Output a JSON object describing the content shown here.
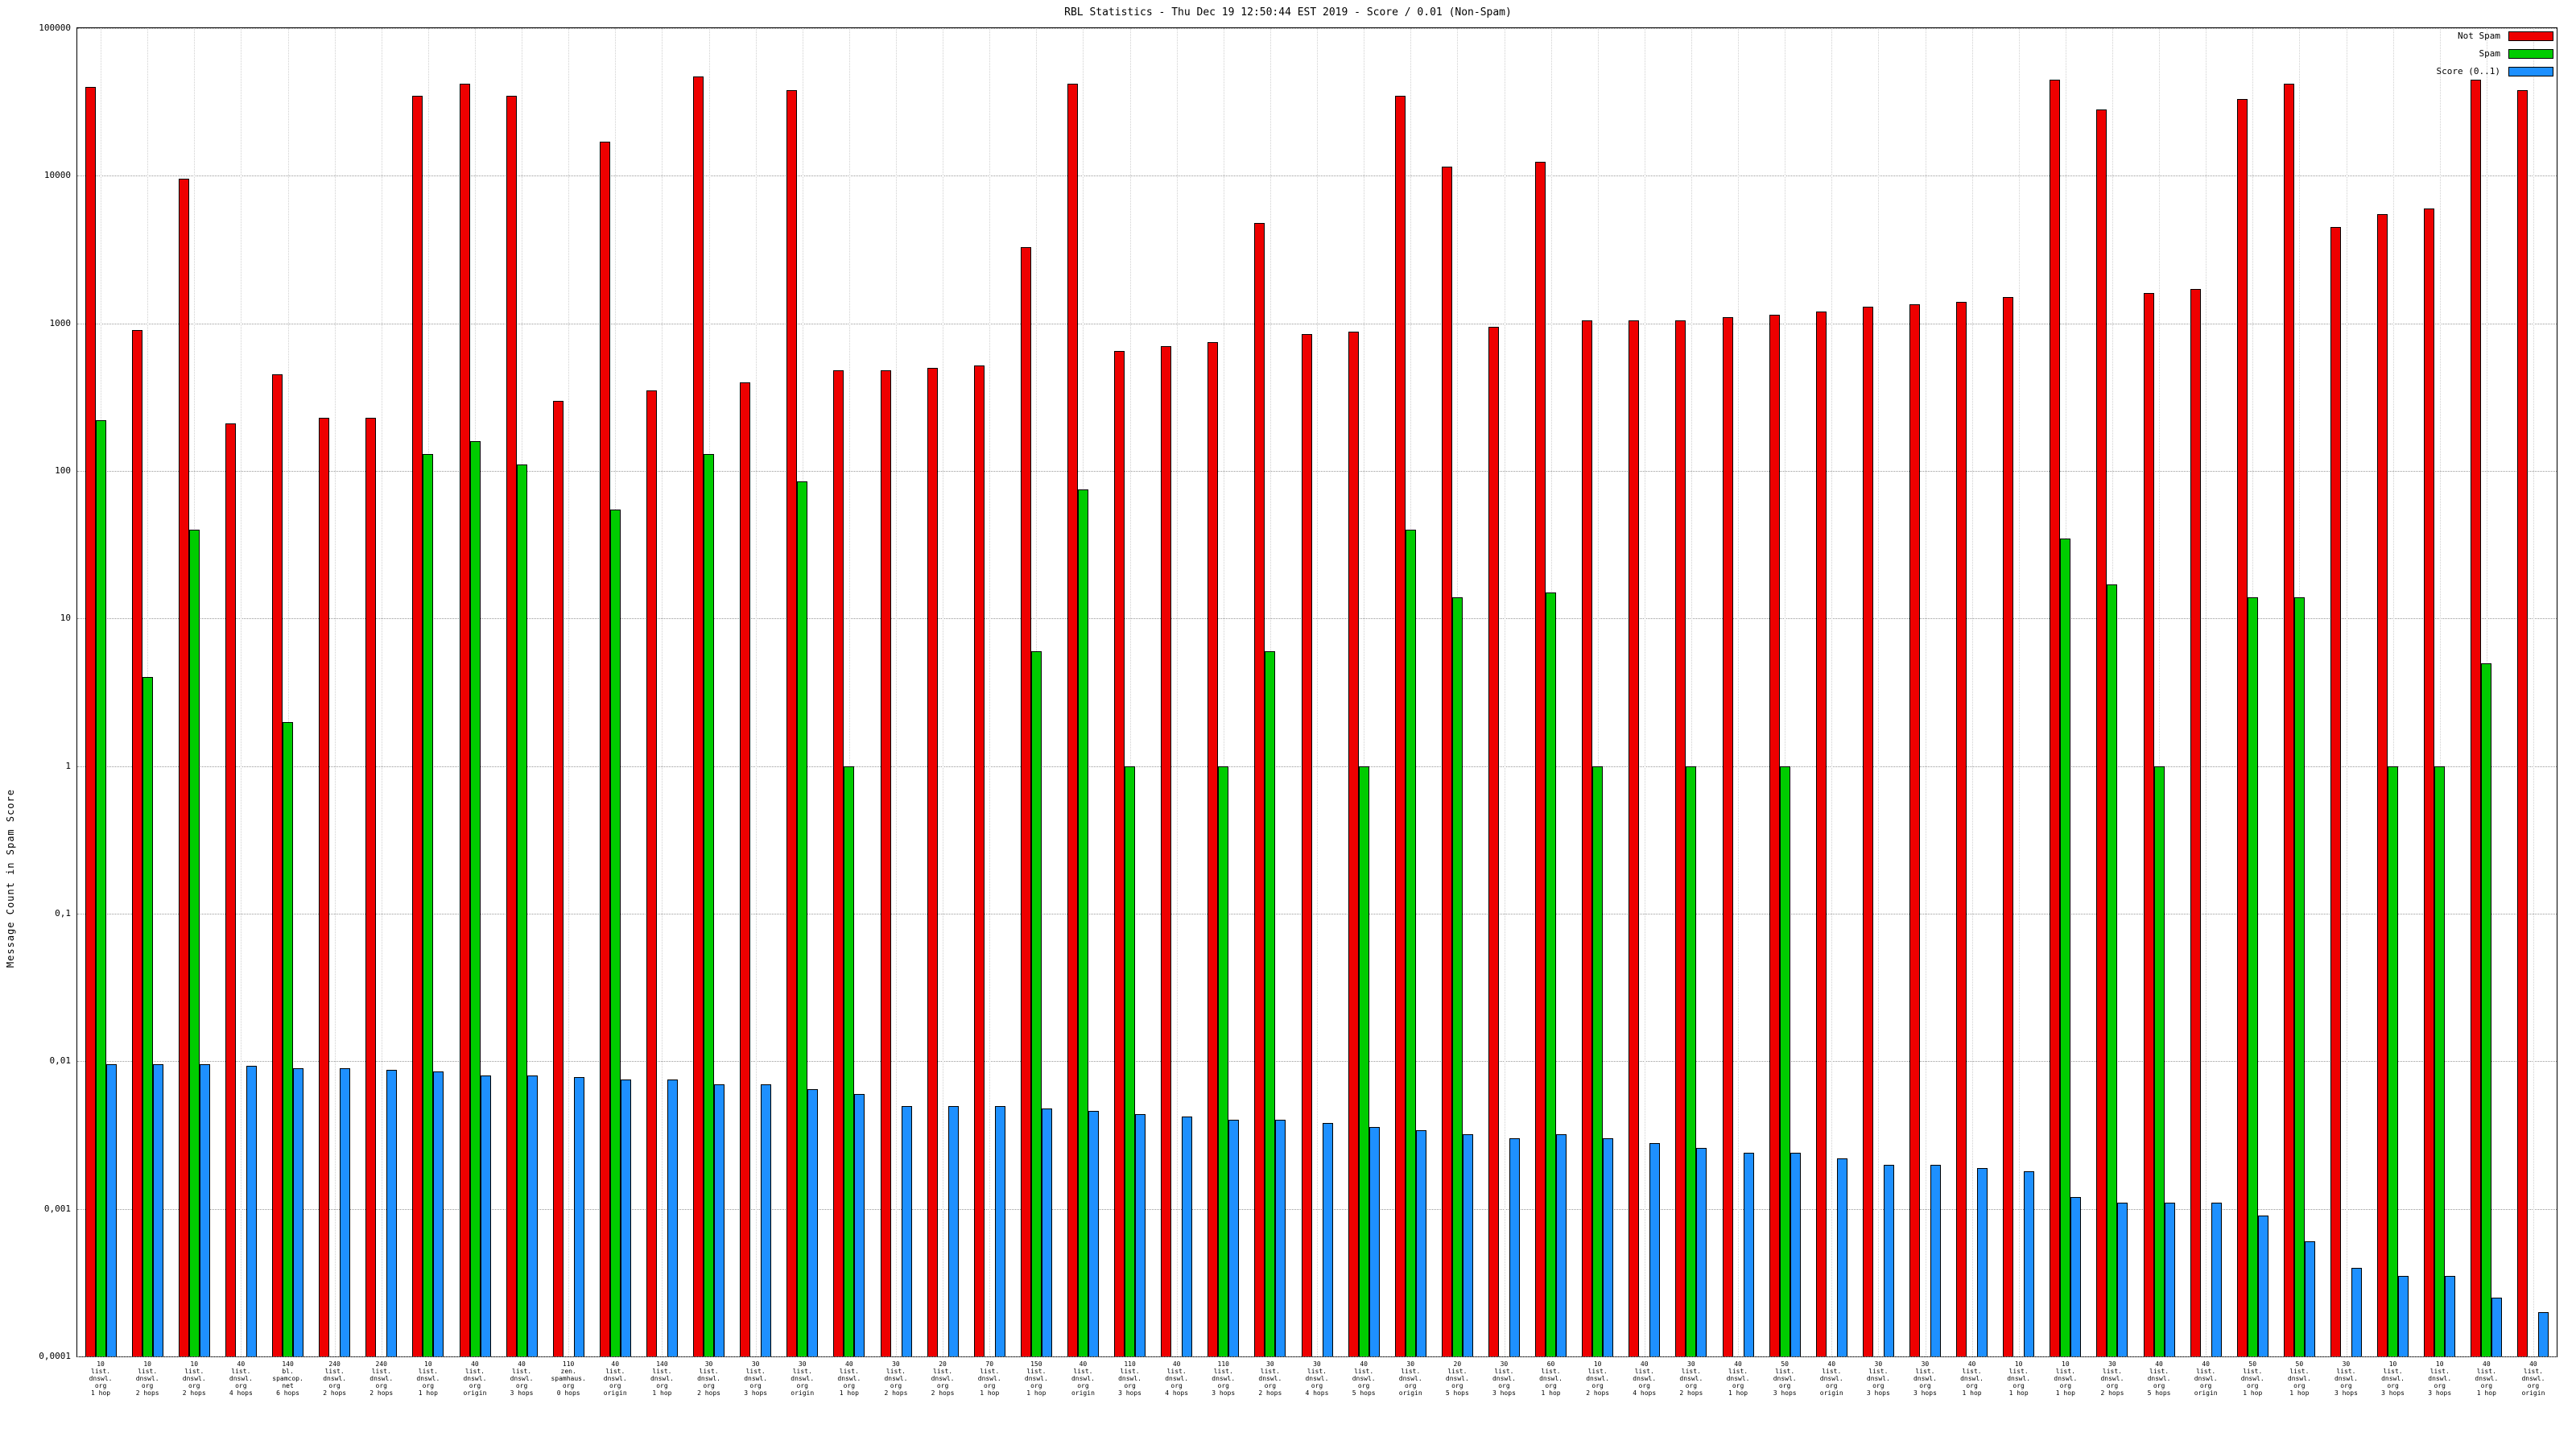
{
  "chart_data": {
    "type": "bar",
    "title": "RBL Statistics - Thu Dec 19 12:50:44 EST 2019 - Score / 0.01 (Non-Spam)",
    "ylabel": "Message Count in Spam Score",
    "yscale": "log",
    "ylim": [
      0.0001,
      100000
    ],
    "grid": true,
    "legend_position": "top-right",
    "yticks": [
      {
        "label": "100000",
        "value": 100000
      },
      {
        "label": "10000",
        "value": 10000
      },
      {
        "label": "1000",
        "value": 1000
      },
      {
        "label": "100",
        "value": 100
      },
      {
        "label": "10",
        "value": 10
      },
      {
        "label": "1",
        "value": 1
      },
      {
        "label": "0,1",
        "value": 0.1
      },
      {
        "label": "0,01",
        "value": 0.01
      },
      {
        "label": "0,001",
        "value": 0.001
      },
      {
        "label": "0,0001",
        "value": 0.0001
      }
    ],
    "legend": [
      {
        "name": "Not Spam",
        "color": "#ee0000"
      },
      {
        "name": "Spam",
        "color": "#00cc00"
      },
      {
        "name": "Score (0..1)",
        "color": "#1e90ff"
      }
    ],
    "categories": [
      [
        "10",
        "list.",
        "dnswl.",
        "org",
        "1 hop"
      ],
      [
        "10",
        "list.",
        "dnswl.",
        "org",
        "2 hops"
      ],
      [
        "10",
        "list.",
        "dnswl.",
        "org",
        "2 hops"
      ],
      [
        "40",
        "list.",
        "dnswl.",
        "org",
        "4 hops"
      ],
      [
        "140",
        "bl.",
        "spamcop.",
        "net",
        "6 hops"
      ],
      [
        "240",
        "list.",
        "dnswl.",
        "org",
        "2 hops"
      ],
      [
        "240",
        "list.",
        "dnswl.",
        "org",
        "2 hops"
      ],
      [
        "10",
        "list.",
        "dnswl.",
        "org",
        "1 hop"
      ],
      [
        "40",
        "list.",
        "dnswl.",
        "org",
        "origin"
      ],
      [
        "40",
        "list.",
        "dnswl.",
        "org",
        "3 hops"
      ],
      [
        "110",
        "zen.",
        "spamhaus.",
        "org",
        "0 hops"
      ],
      [
        "40",
        "list.",
        "dnswl.",
        "org",
        "origin"
      ],
      [
        "140",
        "list.",
        "dnswl.",
        "org",
        "1 hop"
      ],
      [
        "30",
        "list.",
        "dnswl.",
        "org",
        "2 hops"
      ],
      [
        "30",
        "list.",
        "dnswl.",
        "org",
        "3 hops"
      ],
      [
        "30",
        "list.",
        "dnswl.",
        "org",
        "origin"
      ],
      [
        "40",
        "list.",
        "dnswl.",
        "org",
        "1 hop"
      ],
      [
        "30",
        "list.",
        "dnswl.",
        "org",
        "2 hops"
      ],
      [
        "20",
        "list.",
        "dnswl.",
        "org",
        "2 hops"
      ],
      [
        "70",
        "list.",
        "dnswl.",
        "org",
        "1 hop"
      ],
      [
        "150",
        "list.",
        "dnswl.",
        "org",
        "1 hop"
      ],
      [
        "40",
        "list.",
        "dnswl.",
        "org",
        "origin"
      ],
      [
        "110",
        "list.",
        "dnswl.",
        "org",
        "3 hops"
      ],
      [
        "40",
        "list.",
        "dnswl.",
        "org",
        "4 hops"
      ],
      [
        "110",
        "list.",
        "dnswl.",
        "org",
        "3 hops"
      ],
      [
        "30",
        "list.",
        "dnswl.",
        "org",
        "2 hops"
      ],
      [
        "30",
        "list.",
        "dnswl.",
        "org",
        "4 hops"
      ],
      [
        "40",
        "list.",
        "dnswl.",
        "org",
        "5 hops"
      ],
      [
        "30",
        "list.",
        "dnswl.",
        "org",
        "origin"
      ],
      [
        "20",
        "list.",
        "dnswl.",
        "org",
        "5 hops"
      ],
      [
        "30",
        "list.",
        "dnswl.",
        "org",
        "3 hops"
      ],
      [
        "60",
        "list.",
        "dnswl.",
        "org",
        "1 hop"
      ],
      [
        "10",
        "list.",
        "dnswl.",
        "org",
        "2 hops"
      ],
      [
        "40",
        "list.",
        "dnswl.",
        "org",
        "4 hops"
      ],
      [
        "30",
        "list.",
        "dnswl.",
        "org",
        "2 hops"
      ],
      [
        "40",
        "list.",
        "dnswl.",
        "org",
        "1 hop"
      ],
      [
        "50",
        "list.",
        "dnswl.",
        "org",
        "3 hops"
      ],
      [
        "40",
        "list.",
        "dnswl.",
        "org",
        "origin"
      ],
      [
        "30",
        "list.",
        "dnswl.",
        "org",
        "3 hops"
      ],
      [
        "30",
        "list.",
        "dnswl.",
        "org",
        "3 hops"
      ],
      [
        "40",
        "list.",
        "dnswl.",
        "org",
        "1 hop"
      ],
      [
        "10",
        "list.",
        "dnswl.",
        "org",
        "1 hop"
      ],
      [
        "10",
        "list.",
        "dnswl.",
        "org",
        "1 hop"
      ],
      [
        "30",
        "list.",
        "dnswl.",
        "org",
        "2 hops"
      ],
      [
        "40",
        "list.",
        "dnswl.",
        "org",
        "5 hops"
      ],
      [
        "40",
        "list.",
        "dnswl.",
        "org",
        "origin"
      ],
      [
        "50",
        "list.",
        "dnswl.",
        "org",
        "1 hop"
      ],
      [
        "50",
        "list.",
        "dnswl.",
        "org",
        "1 hop"
      ],
      [
        "30",
        "list.",
        "dnswl.",
        "org",
        "3 hops"
      ],
      [
        "10",
        "list.",
        "dnswl.",
        "org",
        "3 hops"
      ],
      [
        "10",
        "list.",
        "dnswl.",
        "org",
        "3 hops"
      ],
      [
        "40",
        "list.",
        "dnswl.",
        "org",
        "1 hop"
      ],
      [
        "40",
        "list.",
        "dnswl.",
        "org",
        "origin"
      ]
    ],
    "series": [
      {
        "name": "Not Spam",
        "color": "#ee0000",
        "values": [
          40000,
          900,
          9500,
          210,
          450,
          230,
          230,
          35000,
          42000,
          35000,
          300,
          17000,
          350,
          47000,
          400,
          38000,
          480,
          480,
          500,
          520,
          3300,
          42000,
          650,
          700,
          750,
          4800,
          850,
          880,
          35000,
          11500,
          950,
          12500,
          1050,
          1050,
          1050,
          1100,
          1150,
          1200,
          1300,
          1350,
          1400,
          1500,
          45000,
          28000,
          1600,
          1700,
          33000,
          42000,
          4500,
          5500,
          6000,
          45000,
          38000
        ]
      },
      {
        "name": "Spam",
        "color": "#00cc00",
        "values": [
          220,
          4,
          40,
          0,
          2,
          0,
          0,
          130,
          160,
          110,
          0,
          55,
          0,
          130,
          0,
          85,
          1,
          0,
          0,
          0,
          6,
          75,
          1,
          0,
          1,
          6,
          0,
          1,
          40,
          14,
          0,
          15,
          1,
          0,
          1,
          0,
          1,
          0,
          0,
          0,
          0,
          0,
          35,
          17,
          1,
          0,
          14,
          14,
          0,
          1,
          1,
          5,
          0
        ]
      },
      {
        "name": "Score (0..1)",
        "color": "#1e90ff",
        "values": [
          0.0095,
          0.0095,
          0.0095,
          0.0093,
          0.009,
          0.009,
          0.0088,
          0.0085,
          0.008,
          0.008,
          0.0078,
          0.0075,
          0.0075,
          0.007,
          0.007,
          0.0065,
          0.006,
          0.005,
          0.005,
          0.005,
          0.0048,
          0.0046,
          0.0044,
          0.0042,
          0.004,
          0.004,
          0.0038,
          0.0036,
          0.0034,
          0.0032,
          0.003,
          0.0032,
          0.003,
          0.0028,
          0.0026,
          0.0024,
          0.0024,
          0.0022,
          0.002,
          0.002,
          0.0019,
          0.0018,
          0.0012,
          0.0011,
          0.0011,
          0.0011,
          0.0009,
          0.0006,
          0.0004,
          0.00035,
          0.00035,
          0.00025,
          0.0002
        ]
      }
    ]
  }
}
